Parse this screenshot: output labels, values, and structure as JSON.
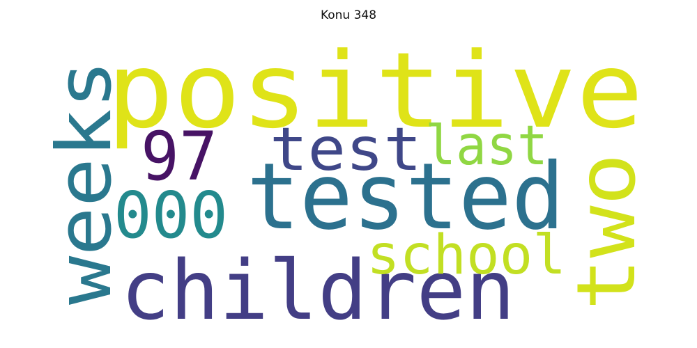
{
  "title": "Konu 348",
  "words": [
    {
      "text": "positive",
      "color": "#dfe318"
    },
    {
      "text": "tested",
      "color": "#2c718e"
    },
    {
      "text": "children",
      "color": "#433e85"
    },
    {
      "text": "weeks",
      "color": "#2a788e"
    },
    {
      "text": "two",
      "color": "#d2e21b"
    },
    {
      "text": "test",
      "color": "#3f4788"
    },
    {
      "text": "97",
      "color": "#471365"
    },
    {
      "text": "last",
      "color": "#90d743"
    },
    {
      "text": "000",
      "color": "#238a8d"
    },
    {
      "text": "school",
      "color": "#c2df23"
    }
  ]
}
